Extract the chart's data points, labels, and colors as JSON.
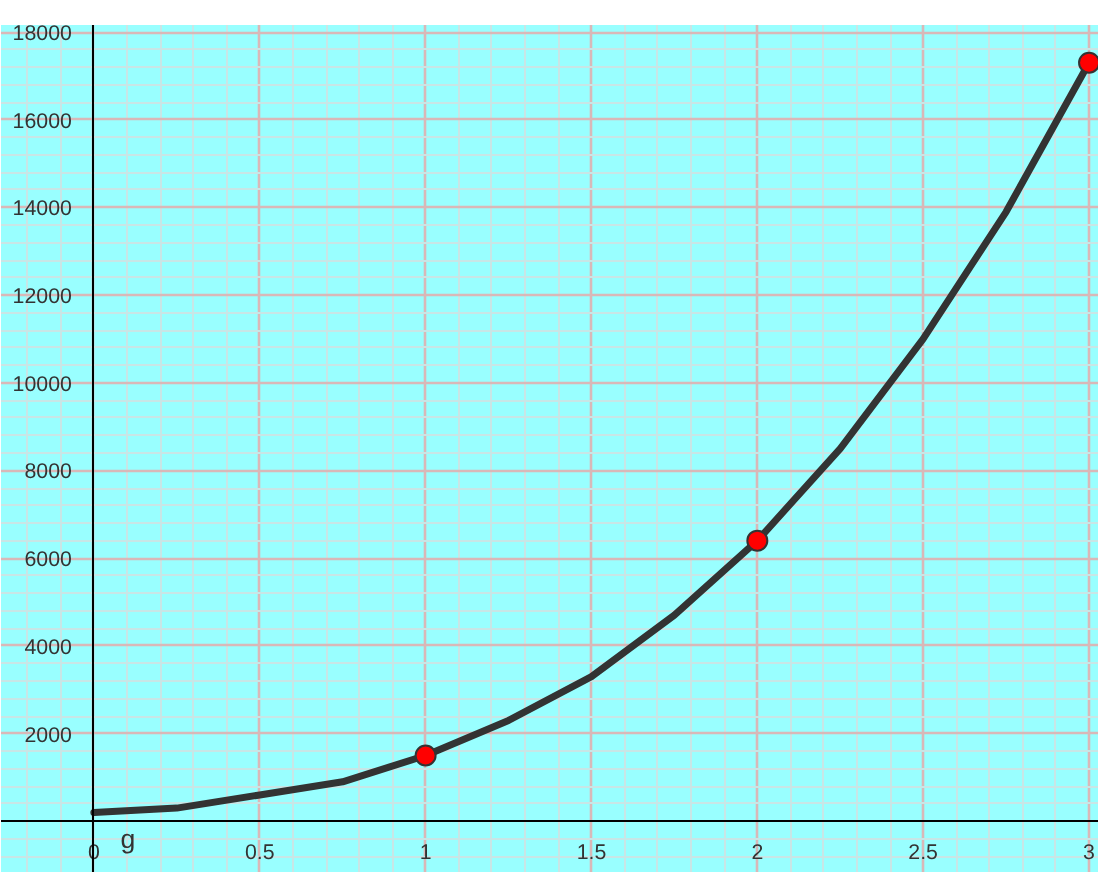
{
  "chart_data": {
    "type": "line",
    "xlim": [
      -0.28,
      3.03
    ],
    "ylim": [
      -1180,
      18160
    ],
    "xticks": [
      0,
      0.5,
      1,
      1.5,
      2,
      2.5,
      3
    ],
    "yticks": [
      2000,
      4000,
      6000,
      8000,
      10000,
      12000,
      14000,
      16000,
      18000
    ],
    "grid": true,
    "series": [
      {
        "color": "#333333",
        "marker": "none",
        "x": [
          0,
          0.25,
          0.5,
          0.75,
          1,
          1.25,
          1.5,
          1.75,
          2,
          2.25,
          2.5,
          2.75,
          3
        ],
        "values": [
          200,
          300,
          600,
          900,
          1500,
          2300,
          3300,
          4700,
          6400,
          8500,
          11000,
          13900,
          17300
        ]
      },
      {
        "type": "scatter",
        "color": "#ff0000",
        "marker": "circle",
        "x": [
          1,
          2,
          3
        ],
        "values": [
          1500,
          6400,
          17300
        ]
      }
    ],
    "annotations": [
      {
        "text": "g",
        "x": 0.08,
        "y": 200
      }
    ]
  }
}
